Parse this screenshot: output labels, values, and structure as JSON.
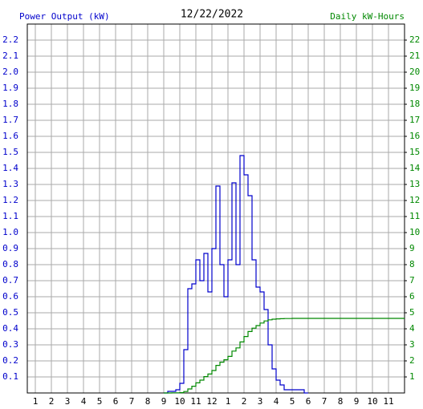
{
  "chart_data": {
    "type": "line",
    "title": "12/22/2022",
    "y_label": "Power Output (kW)",
    "y2_label": "Daily kW-Hours",
    "x": [
      9,
      9.25,
      9.5,
      9.75,
      10,
      10.25,
      10.5,
      10.75,
      11,
      11.25,
      11.5,
      11.75,
      12,
      12.25,
      12.5,
      12.75,
      13,
      13.25,
      13.5,
      13.75,
      14,
      14.25,
      14.5,
      14.75,
      15,
      15.25,
      15.5,
      15.75,
      16,
      16.25,
      16.5,
      16.75,
      17,
      17.25,
      17.5,
      17.75,
      18,
      24
    ],
    "series": [
      {
        "name": "Power Output (kW)",
        "color": "#0000cc",
        "axis": "y",
        "values": [
          0,
          0.01,
          0.01,
          0.02,
          0.06,
          0.27,
          0.65,
          0.68,
          0.83,
          0.7,
          0.87,
          0.63,
          0.9,
          1.29,
          0.8,
          0.6,
          0.83,
          1.31,
          0.8,
          1.48,
          1.36,
          1.23,
          0.83,
          0.66,
          0.63,
          0.52,
          0.3,
          0.15,
          0.08,
          0.05,
          0.02,
          0.02,
          0.02,
          0.02,
          0.02,
          0,
          0,
          null
        ]
      },
      {
        "name": "Daily kW-Hours",
        "color": "#008800",
        "axis": "y2",
        "values": [
          0,
          0,
          0.01,
          0.01,
          0.02,
          0.09,
          0.25,
          0.42,
          0.63,
          0.8,
          1.02,
          1.18,
          1.4,
          1.72,
          1.92,
          2.07,
          2.28,
          2.61,
          2.81,
          3.18,
          3.52,
          3.83,
          4.04,
          4.2,
          4.36,
          4.49,
          4.56,
          4.6,
          4.62,
          4.63,
          4.64,
          4.64,
          4.65,
          4.65,
          4.65,
          4.65,
          4.65,
          4.65
        ]
      }
    ],
    "xlim": [
      0.5,
      24
    ],
    "xticks": [
      1,
      2,
      3,
      4,
      5,
      6,
      7,
      8,
      9,
      10,
      11,
      12,
      {
        "value": 13,
        "label": "1"
      },
      {
        "value": 14,
        "label": "2"
      },
      {
        "value": 15,
        "label": "3"
      },
      {
        "value": 16,
        "label": "4"
      },
      {
        "value": 17,
        "label": "5"
      },
      {
        "value": 18,
        "label": "6"
      },
      {
        "value": 19,
        "label": "7"
      },
      {
        "value": 20,
        "label": "8"
      },
      {
        "value": 21,
        "label": "9"
      },
      {
        "value": 22,
        "label": "10"
      },
      {
        "value": 23,
        "label": "11"
      }
    ],
    "ylim": [
      0,
      2.3
    ],
    "yticks": [
      0.1,
      0.2,
      0.3,
      0.4,
      0.5,
      0.6,
      0.7,
      0.8,
      0.9,
      {
        "value": 1,
        "label": "1.0"
      },
      1.1,
      1.2,
      1.3,
      1.4,
      1.5,
      1.6,
      1.7,
      1.8,
      1.9,
      {
        "value": 2,
        "label": "2.0"
      },
      2.1,
      2.2
    ],
    "y2lim": [
      0,
      23
    ],
    "y2ticks": [
      1,
      2,
      3,
      4,
      5,
      6,
      7,
      8,
      9,
      10,
      11,
      12,
      13,
      14,
      15,
      16,
      17,
      18,
      19,
      20,
      21,
      22
    ],
    "grid": true,
    "step": true
  }
}
